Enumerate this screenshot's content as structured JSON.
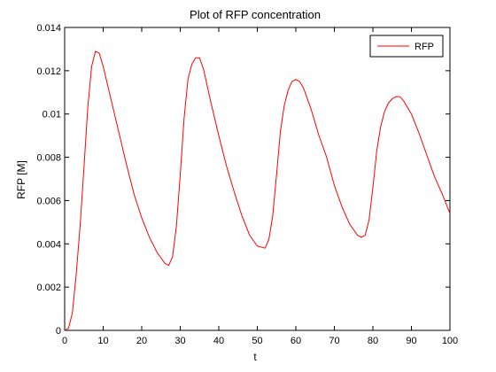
{
  "chart_data": {
    "type": "line",
    "title": "Plot of RFP concentration",
    "xlabel": "t",
    "ylabel": "RFP [M]",
    "xlim": [
      0,
      100
    ],
    "ylim": [
      0,
      0.014
    ],
    "xticks": [
      0,
      10,
      20,
      30,
      40,
      50,
      60,
      70,
      80,
      90,
      100
    ],
    "xtick_labels": [
      "0",
      "10",
      "20",
      "30",
      "40",
      "50",
      "60",
      "70",
      "80",
      "90",
      "100"
    ],
    "yticks": [
      0,
      0.002,
      0.004,
      0.006,
      0.008,
      0.01,
      0.012,
      0.014
    ],
    "ytick_labels": [
      "0",
      "0.002",
      "0.004",
      "0.006",
      "0.008",
      "0.01",
      "0.012",
      "0.014"
    ],
    "grid": false,
    "legend_position": "top-right",
    "colors": {
      "series": "#ff0000",
      "axes": "#000000",
      "background": "#ffffff"
    },
    "series": [
      {
        "name": "RFP",
        "x": [
          0,
          1,
          2,
          3,
          4,
          5,
          6,
          7,
          8,
          9,
          10,
          12,
          14,
          16,
          18,
          20,
          22,
          24,
          26,
          27,
          28,
          29,
          30,
          31,
          32,
          33,
          34,
          35,
          36,
          38,
          40,
          42,
          44,
          46,
          48,
          50,
          52,
          53,
          54,
          55,
          56,
          57,
          58,
          59,
          60,
          61,
          62,
          64,
          66,
          68,
          70,
          72,
          74,
          76,
          77,
          78,
          79,
          80,
          81,
          82,
          83,
          84,
          85,
          86,
          87,
          88,
          90,
          92,
          94,
          96,
          98,
          100
        ],
        "y": [
          0,
          0.0001,
          0.0008,
          0.0026,
          0.0048,
          0.0075,
          0.0103,
          0.0122,
          0.0129,
          0.0128,
          0.0122,
          0.0107,
          0.0092,
          0.0077,
          0.0063,
          0.0052,
          0.0043,
          0.0036,
          0.0031,
          0.003,
          0.0034,
          0.0048,
          0.0072,
          0.0098,
          0.0116,
          0.0123,
          0.0126,
          0.0126,
          0.0121,
          0.0105,
          0.009,
          0.0076,
          0.0064,
          0.0053,
          0.0044,
          0.0039,
          0.0038,
          0.0042,
          0.0053,
          0.0072,
          0.0092,
          0.0104,
          0.0111,
          0.0115,
          0.0116,
          0.0115,
          0.0112,
          0.0102,
          0.009,
          0.008,
          0.0067,
          0.0057,
          0.0049,
          0.0044,
          0.0043,
          0.0044,
          0.0051,
          0.0066,
          0.0083,
          0.0094,
          0.0101,
          0.0105,
          0.0107,
          0.0108,
          0.0108,
          0.0106,
          0.01,
          0.0091,
          0.0081,
          0.0071,
          0.0063,
          0.0054
        ]
      }
    ]
  }
}
